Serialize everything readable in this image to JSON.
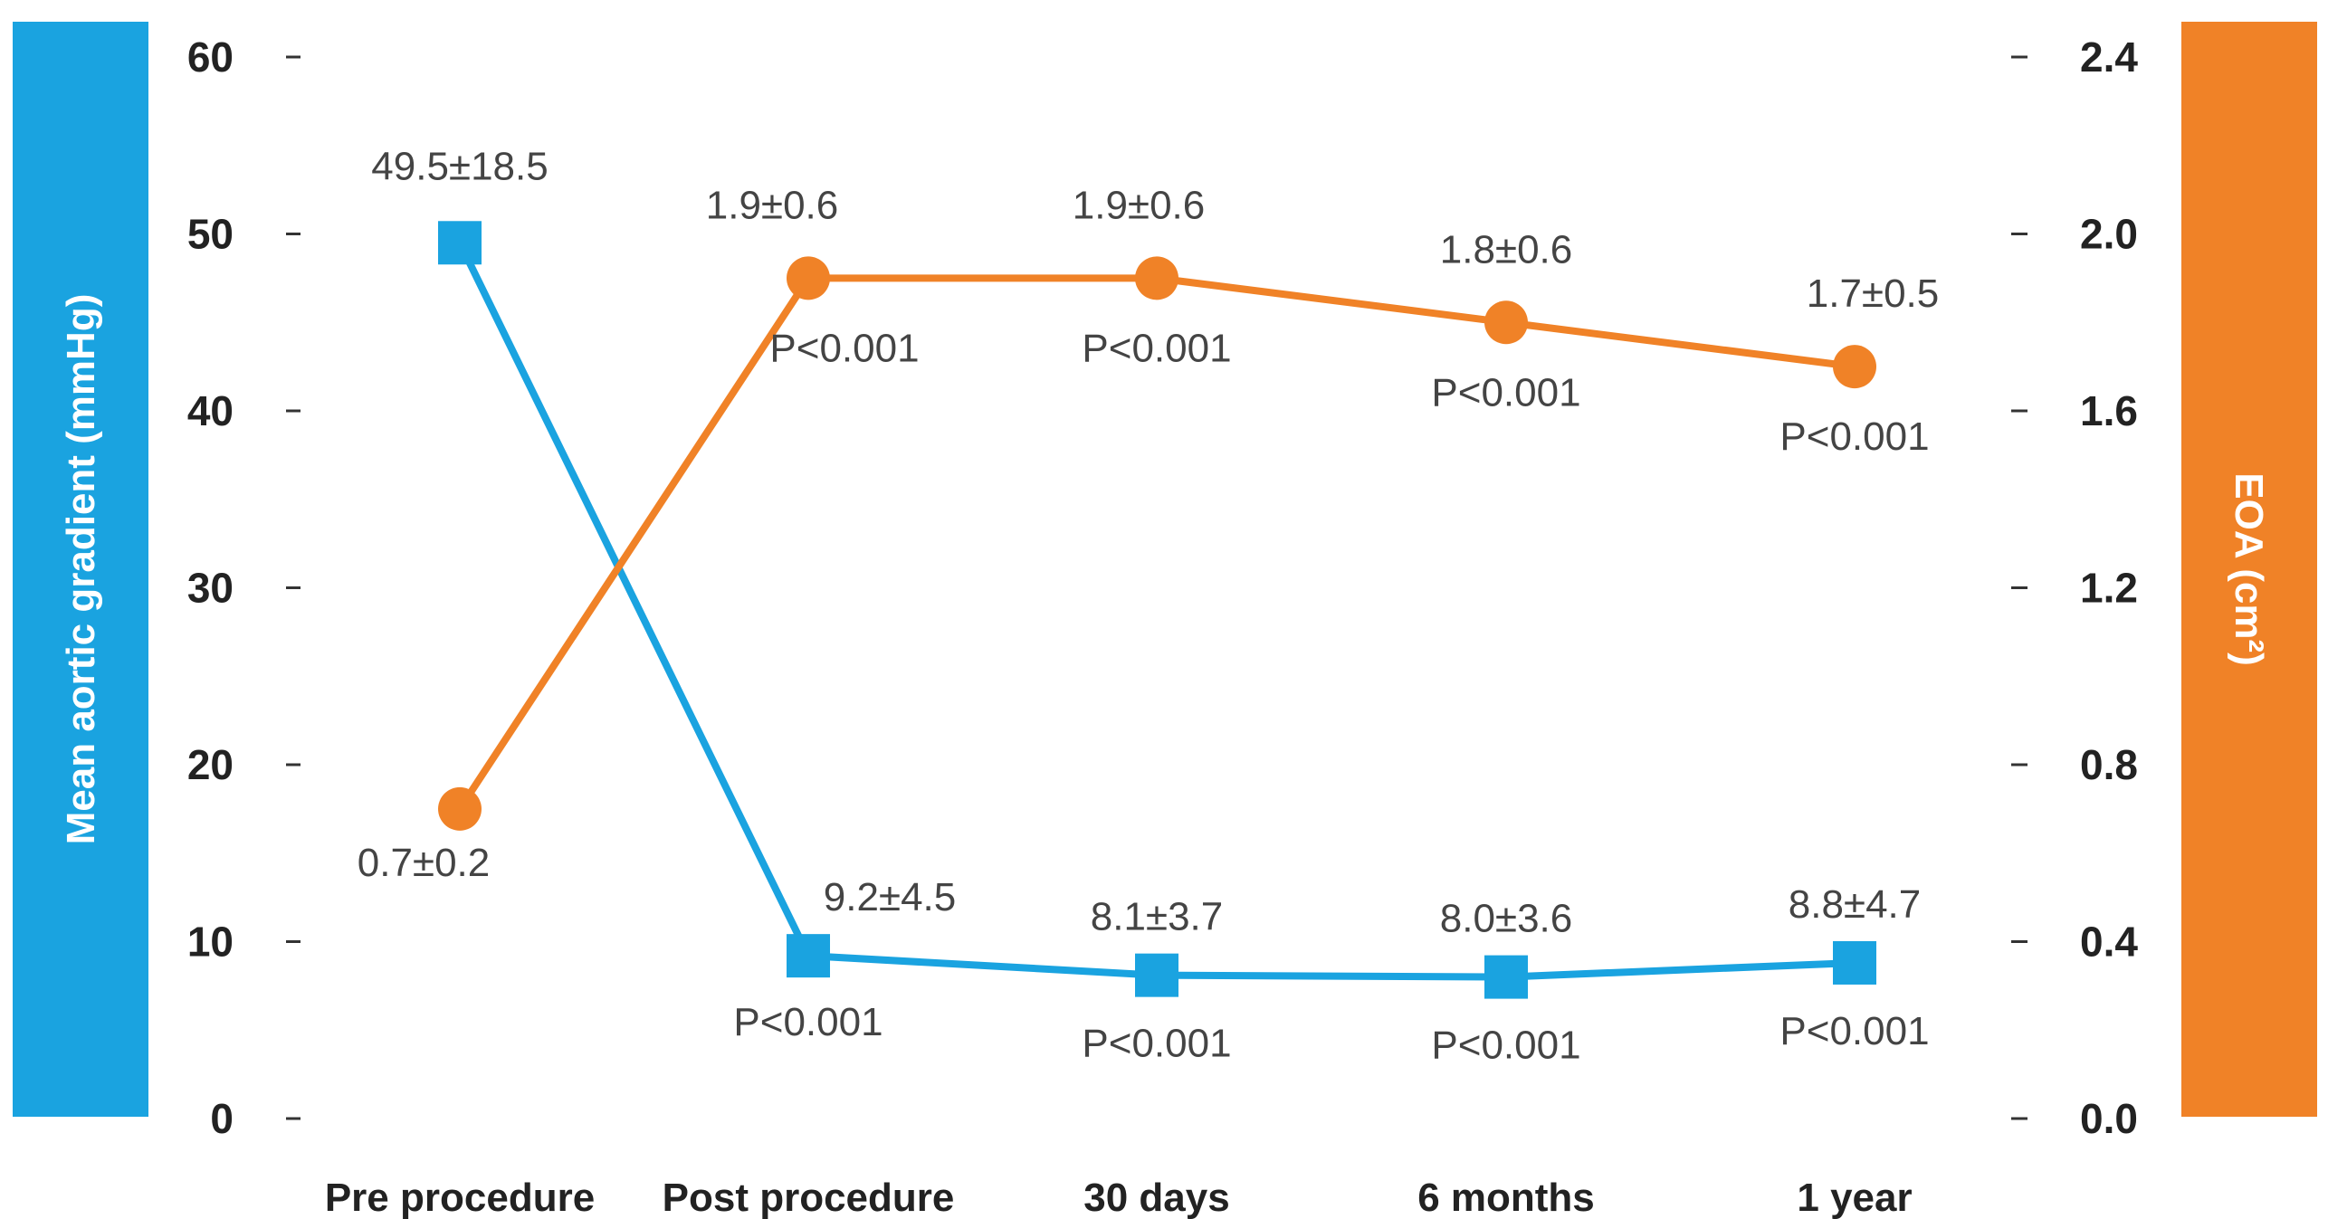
{
  "chart_data": {
    "type": "line",
    "categories": [
      "Pre procedure",
      "Post procedure",
      "30 days",
      "6 months",
      "1 year"
    ],
    "y_left": {
      "label": "Mean aortic gradient (mmHg)",
      "ylim": [
        0,
        60
      ],
      "ticks": [
        "0",
        "10",
        "20",
        "30",
        "40",
        "50",
        "60"
      ],
      "color": "#1aa3e0"
    },
    "y_right": {
      "label": "EOA (cm²)",
      "ylim": [
        0,
        2.4
      ],
      "ticks": [
        "0.0",
        "0.4",
        "0.8",
        "1.2",
        "1.6",
        "2.0",
        "2.4"
      ],
      "color": "#f08227"
    },
    "series": [
      {
        "axis": "left",
        "marker": "square",
        "color": "#1aa3e0",
        "values": [
          49.5,
          9.2,
          8.1,
          8.0,
          8.8
        ],
        "labels": [
          "49.5±18.5",
          "9.2±4.5",
          "8.1±3.7",
          "8.0±3.6",
          "8.8±4.7"
        ],
        "pvalues": [
          "",
          "P<0.001",
          "P<0.001",
          "P<0.001",
          "P<0.001"
        ]
      },
      {
        "axis": "right",
        "marker": "circle",
        "color": "#f08227",
        "values": [
          0.7,
          1.9,
          1.9,
          1.8,
          1.7
        ],
        "labels": [
          "0.7±0.2",
          "1.9±0.6",
          "1.9±0.6",
          "1.8±0.6",
          "1.7±0.5"
        ],
        "pvalues": [
          "",
          "P<0.001",
          "P<0.001",
          "P<0.001",
          "P<0.001"
        ]
      }
    ],
    "grid": false,
    "legend": "none"
  }
}
